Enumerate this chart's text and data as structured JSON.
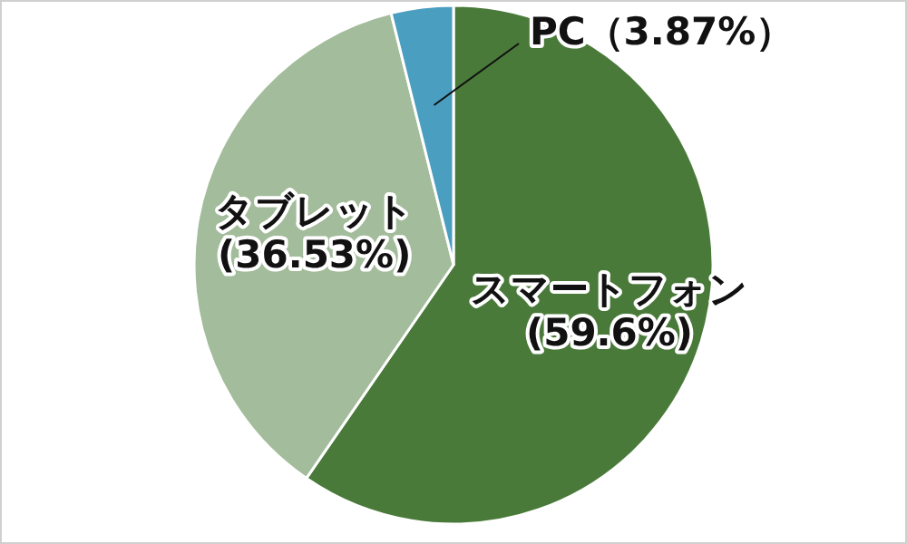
{
  "chart_data": {
    "type": "pie",
    "categories": [
      "スマートフォン",
      "タブレット",
      "PC"
    ],
    "values": [
      59.6,
      36.53,
      3.87
    ],
    "colors": [
      "#4a7a3a",
      "#a3bc9b",
      "#4a9ec0"
    ],
    "value_labels": [
      "(59.6%)",
      "(36.53%)",
      "（3.87%）"
    ]
  }
}
